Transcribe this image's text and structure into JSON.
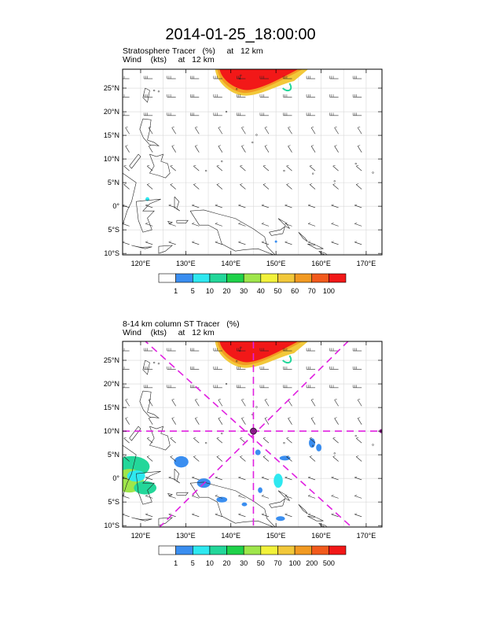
{
  "title": "2014-01-25_18:00:00",
  "panels": [
    {
      "label_line1": "Stratosphere Tracer   (%)     at   12 km",
      "label_line2": "Wind    (kts)     at   12 km",
      "lat_ticks": [
        "25°N",
        "20°N",
        "15°N",
        "10°N",
        "5°N",
        "0°",
        "5°S",
        "10°S"
      ],
      "lon_ticks": [
        "120°E",
        "130°E",
        "140°E",
        "150°E",
        "160°E",
        "170°E"
      ],
      "colorbar_labels": [
        "1",
        "5",
        "10",
        "20",
        "30",
        "40",
        "50",
        "60",
        "70",
        "100"
      ],
      "colorbar_colors": [
        "#ffffff",
        "#3a8ef0",
        "#2ee8f0",
        "#23d79a",
        "#1fd24a",
        "#9fe64b",
        "#f2f23a",
        "#f2c83a",
        "#f29a22",
        "#f25a1c",
        "#f21818"
      ]
    },
    {
      "label_line1": "8-14 km column ST Tracer   (%)",
      "label_line2": "Wind    (kts)     at   12 km",
      "lat_ticks": [
        "25°N",
        "20°N",
        "15°N",
        "10°N",
        "5°N",
        "0°",
        "5°S",
        "10°S"
      ],
      "lon_ticks": [
        "120°E",
        "130°E",
        "140°E",
        "150°E",
        "160°E",
        "170°E"
      ],
      "colorbar_labels": [
        "1",
        "5",
        "10",
        "20",
        "30",
        "50",
        "70",
        "100",
        "200",
        "500"
      ],
      "colorbar_colors": [
        "#ffffff",
        "#3a8ef0",
        "#2ee8f0",
        "#23d79a",
        "#1fd24a",
        "#9fe64b",
        "#f2f23a",
        "#f2c83a",
        "#f29a22",
        "#f25a1c",
        "#f21818"
      ]
    }
  ]
}
